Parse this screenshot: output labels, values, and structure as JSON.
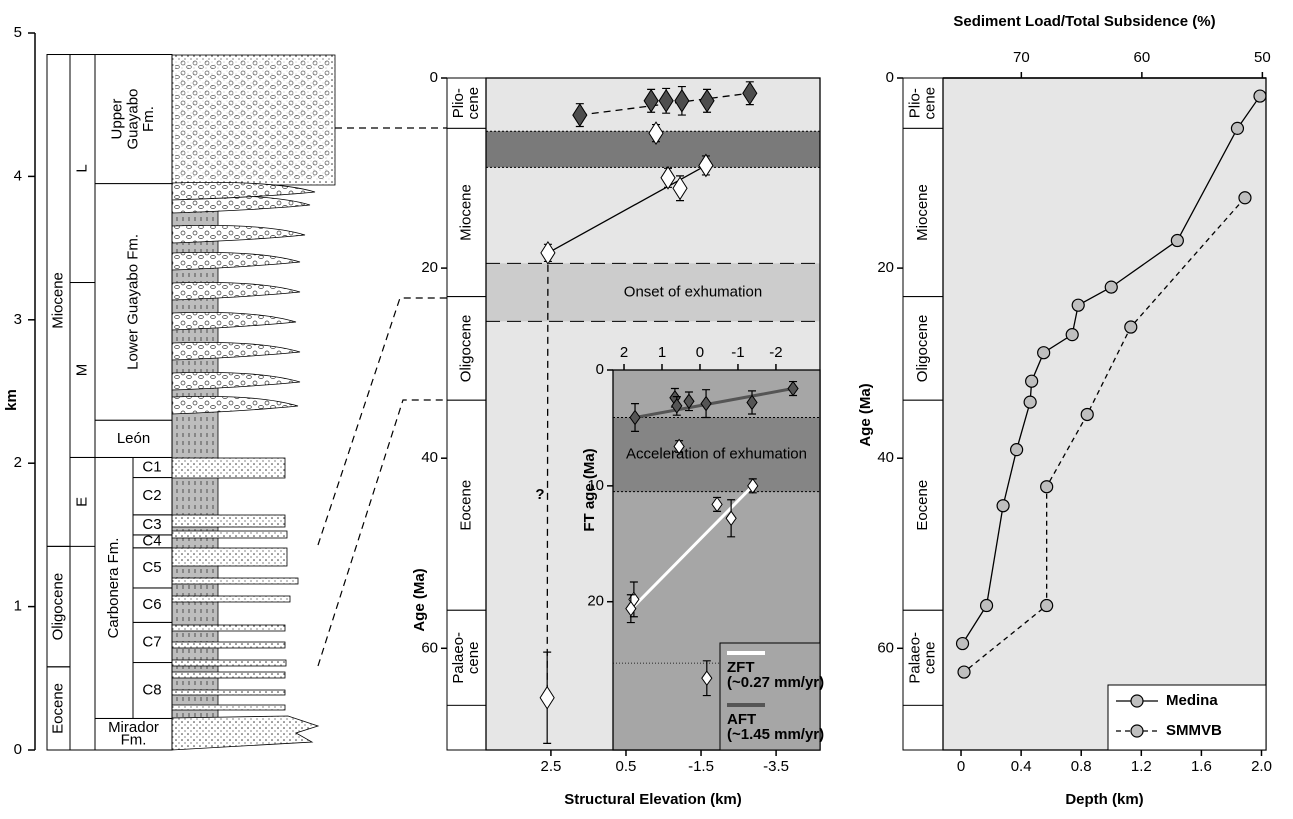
{
  "chart_data": [
    {
      "type": "column",
      "ylabel": "km",
      "ylim": [
        0,
        5
      ],
      "yticks": [
        0,
        1,
        2,
        3,
        4,
        5
      ],
      "epochs": [
        {
          "label": [
            "Eocene"
          ],
          "range": [
            0,
            0.58
          ]
        },
        {
          "label": [
            "Oligocene"
          ],
          "range": [
            0.58,
            1.42
          ]
        },
        {
          "label": [
            "Miocene"
          ],
          "range": [
            1.42,
            4.85
          ]
        }
      ],
      "subepochs": [
        {
          "label": [
            "E"
          ],
          "range": [
            1.42,
            2.04
          ]
        },
        {
          "label": [
            "M"
          ],
          "range": [
            2.04,
            3.26
          ]
        },
        {
          "label": [
            "L"
          ],
          "range": [
            3.26,
            4.85
          ]
        }
      ],
      "formations": [
        {
          "label": [
            "Mirador",
            "Fm."
          ],
          "range": [
            0,
            0.22
          ]
        },
        {
          "label": [
            "Carbonera Fm."
          ],
          "range": [
            0.22,
            2.04
          ],
          "members": [
            {
              "label": "C8",
              "range": [
                0.22,
                0.61
              ]
            },
            {
              "label": "C7",
              "range": [
                0.61,
                0.89
              ]
            },
            {
              "label": "C6",
              "range": [
                0.89,
                1.13
              ]
            },
            {
              "label": "C5",
              "range": [
                1.13,
                1.41
              ]
            },
            {
              "label": "C4",
              "range": [
                1.41,
                1.5
              ]
            },
            {
              "label": "C3",
              "range": [
                1.5,
                1.64
              ]
            },
            {
              "label": "C2",
              "range": [
                1.64,
                1.9
              ]
            },
            {
              "label": "C1",
              "range": [
                1.9,
                2.04
              ]
            }
          ]
        },
        {
          "label": [
            "León"
          ],
          "range": [
            2.04,
            2.3
          ]
        },
        {
          "label": [
            "Lower Guayabo Fm."
          ],
          "range": [
            2.3,
            3.95
          ]
        },
        {
          "label": [
            "Upper",
            "Guayabo",
            "Fm."
          ],
          "range": [
            3.95,
            4.85
          ]
        }
      ]
    },
    {
      "type": "scatter",
      "xlabel": "Structural Elevation (km)",
      "ylabel": "Age (Ma)",
      "annotation": "?",
      "xlim": [
        4.23,
        -4.67
      ],
      "xticks": [
        2.5,
        0.5,
        -1.5,
        -3.5
      ],
      "ylim": [
        0,
        70.7
      ],
      "yticks": [
        0,
        20,
        40,
        60
      ],
      "background": "#e6e6e6",
      "epochs": [
        {
          "label": [
            "Plio-",
            "cene"
          ],
          "range": [
            0,
            5.3
          ]
        },
        {
          "label": [
            "Miocene"
          ],
          "range": [
            5.3,
            23
          ]
        },
        {
          "label": [
            "Oligocene"
          ],
          "range": [
            23,
            33.9
          ]
        },
        {
          "label": [
            "Eocene"
          ],
          "range": [
            33.9,
            56
          ]
        },
        {
          "label": [
            "Palaeo-",
            "cene"
          ],
          "range": [
            56,
            66
          ]
        }
      ],
      "bands": [
        {
          "range": [
            5.6,
            9.4
          ],
          "color": "#7a7a7a"
        },
        {
          "range": [
            19.5,
            25.6
          ],
          "color": "#cccccc",
          "label": "Onset of exhumation"
        }
      ],
      "lines": [
        {
          "x": [
            1.73,
            -2.8
          ],
          "values": [
            3.9,
            1.6
          ],
          "color": "#000",
          "dashed": true
        },
        {
          "x": [
            2.58,
            -1.63
          ],
          "values": [
            18.4,
            9.2
          ],
          "color": "#000",
          "dashed": false
        },
        {
          "x": [
            2.58,
            2.6
          ],
          "values": [
            18.4,
            65.2
          ],
          "color": "#000",
          "dashed": true
        }
      ],
      "series": [
        {
          "marker": "diamond",
          "color": "#4d4d4d",
          "x": [
            1.73,
            -0.17,
            -0.57,
            -0.99,
            -1.66,
            -2.8
          ],
          "values": [
            3.9,
            2.4,
            2.4,
            2.4,
            2.4,
            1.6
          ],
          "yerr": [
            1.2,
            1.2,
            1.3,
            1.5,
            1.2,
            1.2
          ]
        },
        {
          "marker": "diamond",
          "color": "#ffffff",
          "x": [
            -0.3,
            -0.62,
            -0.94,
            -1.63,
            2.58,
            2.6
          ],
          "values": [
            5.8,
            10.5,
            11.6,
            9.2,
            18.4,
            65.2
          ],
          "yerr": [
            0.9,
            1,
            1.3,
            1,
            0.9,
            4.8
          ]
        }
      ]
    },
    {
      "type": "scatter",
      "ylabel": "FT age (Ma)",
      "legend": "lower right",
      "xlim": [
        2.29,
        -3.16
      ],
      "xticks": [
        2,
        1,
        0,
        -1,
        -2
      ],
      "ylim": [
        0,
        32.8
      ],
      "yticks": [
        0,
        10,
        20
      ],
      "background": "#a6a6a6",
      "bands": [
        {
          "range": [
            4.1,
            10.5
          ],
          "color": "#858585",
          "label": "Acceleration of exhumation"
        }
      ],
      "hlines": [
        25.3
      ],
      "lines": [
        {
          "x": [
            1.71,
            -2.45
          ],
          "values": [
            4.1,
            1.6
          ],
          "color": "#555555",
          "dashed": false
        },
        {
          "x": [
            1.74,
            -1.39
          ],
          "values": [
            20.4,
            10.0
          ],
          "color": "#ffffff",
          "dashed": false
        }
      ],
      "series": [
        {
          "name": "AFT",
          "rate": "(~1.45 mm/yr)",
          "marker": "diamond",
          "color": "#555555",
          "x": [
            1.71,
            0.66,
            0.61,
            0.29,
            -0.16,
            -1.37,
            -2.45
          ],
          "values": [
            4.1,
            2.4,
            3.1,
            2.7,
            2.9,
            2.8,
            1.6
          ],
          "yerr": [
            1.2,
            0.8,
            0.8,
            0.8,
            1.2,
            1,
            0.6
          ]
        },
        {
          "name": "ZFT",
          "rate": "(~0.27 mm/yr)",
          "marker": "diamond",
          "color": "#ffffff",
          "x": [
            0.55,
            -0.45,
            -0.82,
            -1.39,
            1.74,
            1.82,
            -0.18
          ],
          "values": [
            6.6,
            11.6,
            12.8,
            10.0,
            19.8,
            20.6,
            26.6
          ],
          "yerr": [
            0.5,
            0.6,
            1.6,
            0.6,
            1.5,
            1.2,
            1.5
          ]
        }
      ]
    },
    {
      "type": "line",
      "xlabel": "Depth (km)",
      "ylabel": "Age (Ma)",
      "x2label": "Sediment Load/Total Subsidence (%)",
      "legend": "lower right",
      "xlim": [
        -0.12,
        2.03
      ],
      "xticks": [
        0,
        0.4,
        0.8,
        1.2,
        1.6,
        {
          "value": 2,
          "label": "2.0"
        }
      ],
      "x2lim": [
        76.5,
        49.7
      ],
      "x2ticks": [
        70,
        60,
        50
      ],
      "ylim": [
        0,
        70.7
      ],
      "yticks": [
        0,
        20,
        40,
        60
      ],
      "background": "#e6e6e6",
      "epochs": [
        {
          "label": [
            "Plio-",
            "cene"
          ],
          "range": [
            0,
            5.3
          ]
        },
        {
          "label": [
            "Miocene"
          ],
          "range": [
            5.3,
            23
          ]
        },
        {
          "label": [
            "Oligocene"
          ],
          "range": [
            23,
            33.9
          ]
        },
        {
          "label": [
            "Eocene"
          ],
          "range": [
            33.9,
            56
          ]
        },
        {
          "label": [
            "Palaeo-",
            "cene"
          ],
          "range": [
            56,
            66
          ]
        }
      ],
      "series": [
        {
          "name": "Medina",
          "marker": "circle",
          "color": "#bfbfbf",
          "dashed": false,
          "x": [
            1.99,
            1.84,
            1.44,
            1.0,
            0.78,
            0.74,
            0.55,
            0.47,
            0.46,
            0.37,
            0.28,
            0.17,
            0.01
          ],
          "values": [
            1.9,
            5.3,
            17.1,
            22,
            23.9,
            27,
            28.9,
            31.9,
            34.1,
            39.1,
            45,
            55.5,
            59.5
          ]
        },
        {
          "name": "SMMVB",
          "marker": "circle",
          "color": "#bfbfbf",
          "dashed": true,
          "x": [
            1.89,
            1.13,
            0.84,
            0.57,
            0.57,
            0.02
          ],
          "values": [
            12.6,
            26.2,
            35.4,
            43,
            55.5,
            62.5
          ]
        }
      ]
    }
  ]
}
